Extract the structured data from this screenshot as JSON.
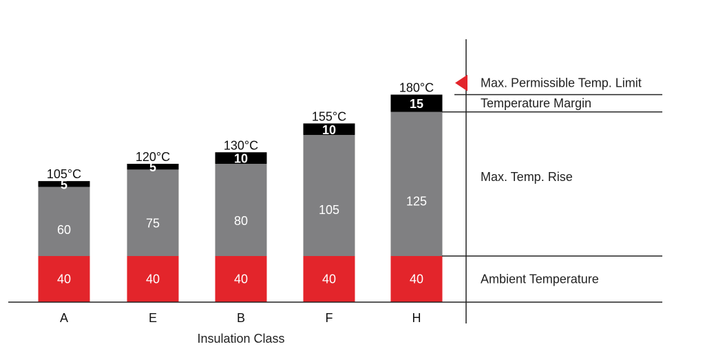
{
  "chart_data": {
    "type": "bar",
    "stacked": true,
    "xlabel": "Insulation Class",
    "categories": [
      "A",
      "E",
      "B",
      "F",
      "H"
    ],
    "series": [
      {
        "name": "Ambient Temperature",
        "values": [
          40,
          40,
          40,
          40,
          40
        ],
        "color": "#e3252b"
      },
      {
        "name": "Max. Temp. Rise",
        "values": [
          60,
          75,
          80,
          105,
          125
        ],
        "color": "#808082"
      },
      {
        "name": "Temperature Margin",
        "values": [
          5,
          5,
          10,
          10,
          15
        ],
        "color": "#000000"
      }
    ],
    "totals": [
      "105°C",
      "120°C",
      "130°C",
      "155°C",
      "180°C"
    ],
    "limit_label": "Max. Permissible Temp. Limit",
    "limit_marker_color": "#e3252b",
    "ylim": [
      0,
      180
    ]
  }
}
